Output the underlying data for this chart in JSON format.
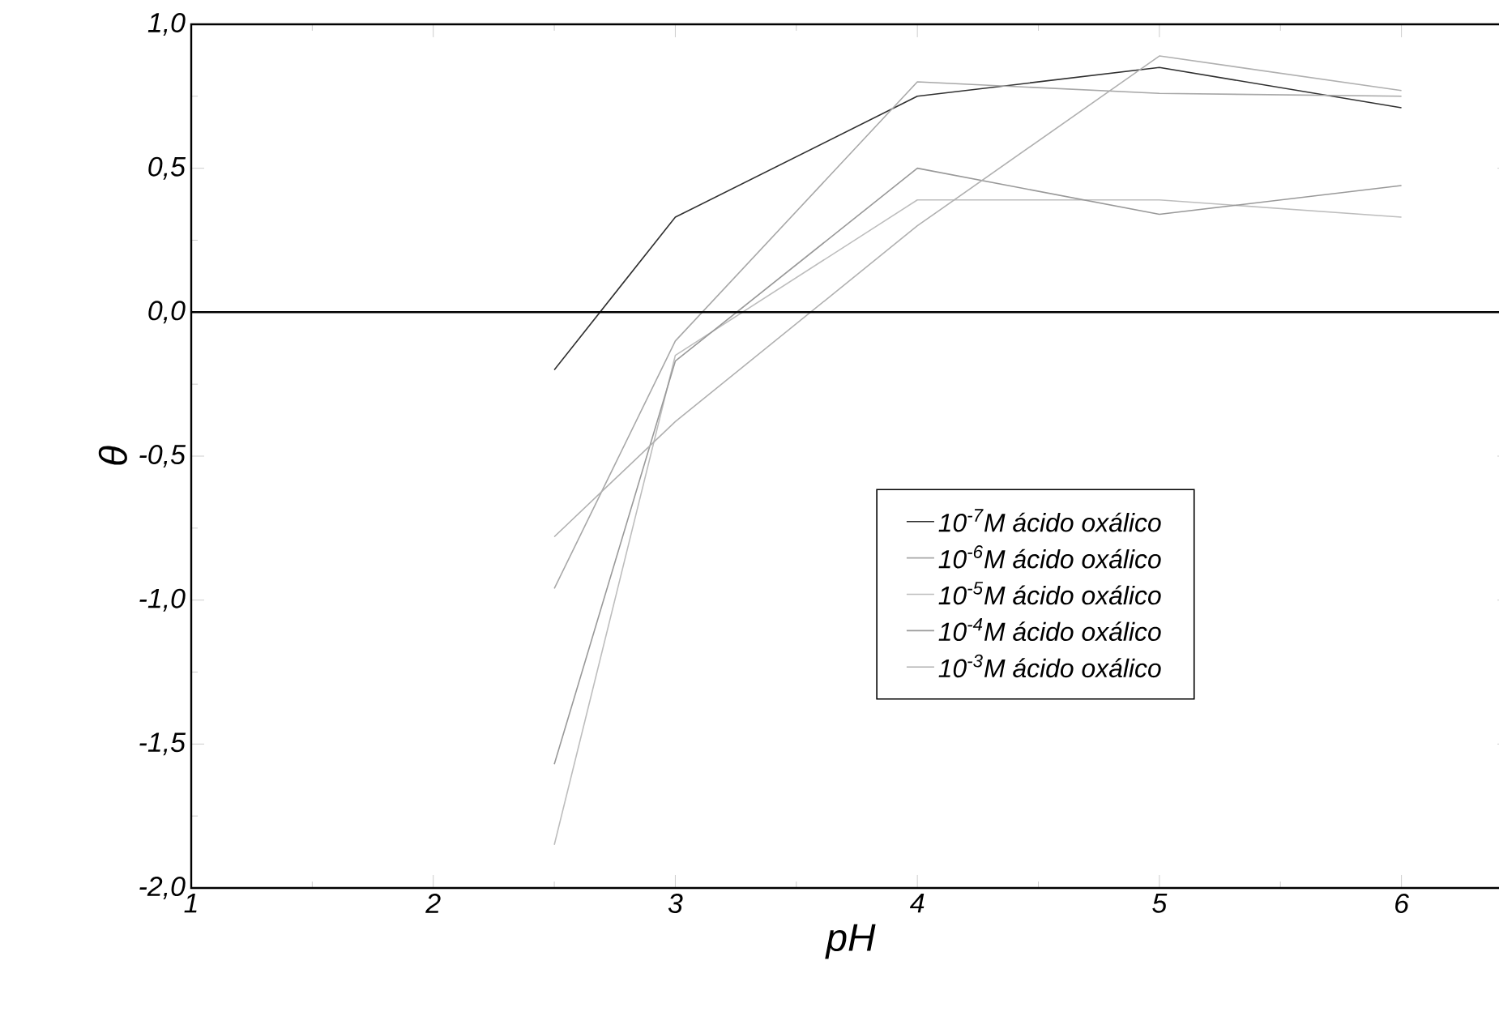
{
  "chart_data": {
    "type": "line",
    "xlabel": "pH",
    "ylabel": "θ",
    "x": [
      2.5,
      3,
      4,
      5,
      6
    ],
    "series": [
      {
        "name": "10$^{-7}$M ácido oxálico",
        "color": "#303030",
        "values": [
          -0.2,
          0.33,
          0.75,
          0.85,
          0.71
        ]
      },
      {
        "name": "10$^{-6}$M ácido oxálico",
        "color": "#a8a8a8",
        "values": [
          -0.96,
          -0.1,
          0.8,
          0.76,
          0.75
        ]
      },
      {
        "name": "10$^{-5}$M ácido oxálico",
        "color": "#bdbdbd",
        "values": [
          -1.85,
          -0.15,
          0.39,
          0.39,
          0.33
        ]
      },
      {
        "name": "10$^{-4}$M ácido oxálico",
        "color": "#999999",
        "values": [
          -1.57,
          -0.17,
          0.5,
          0.34,
          0.44
        ]
      },
      {
        "name": "10$^{-3}$M ácido oxálico",
        "color": "#b0b0b0",
        "values": [
          -0.78,
          -0.38,
          0.3,
          0.89,
          0.77
        ]
      }
    ],
    "xlim": [
      1,
      6.45
    ],
    "ylim": [
      -2,
      1
    ],
    "xticks": [
      1,
      2,
      3,
      4,
      5,
      6
    ],
    "yticks": [
      {
        "value": -2,
        "label": "-2,0"
      },
      {
        "value": -1.5,
        "label": "-1,5"
      },
      {
        "value": -1,
        "label": "-1,0"
      },
      {
        "value": -0.5,
        "label": "-0,5"
      },
      {
        "value": 0,
        "label": "0,0"
      },
      {
        "value": 0.5,
        "label": "0,5"
      },
      {
        "value": 1,
        "label": "1,0"
      }
    ],
    "ref_lines": [
      {
        "axis": "y",
        "value": 0,
        "color": "#000000"
      }
    ],
    "grid": false,
    "legend": "right",
    "marker": "none",
    "line_style": "solid"
  }
}
